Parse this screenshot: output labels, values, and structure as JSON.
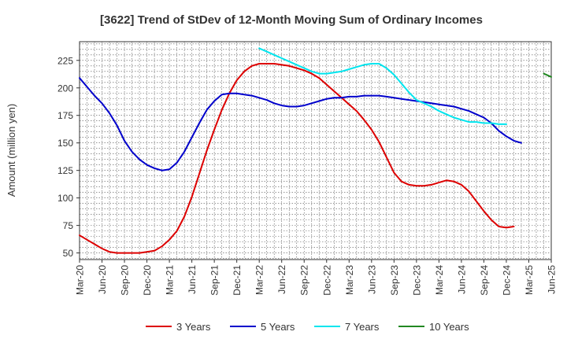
{
  "chart_data": {
    "type": "line",
    "title": "[3622]  Trend of StDev of 12-Month Moving Sum of Ordinary Incomes",
    "xlabel": "",
    "ylabel": "Amount (million yen)",
    "ylim": [
      44,
      242
    ],
    "yticks": [
      50,
      75,
      100,
      125,
      150,
      175,
      200,
      225
    ],
    "xlim": [
      0,
      63
    ],
    "x_tick_labels": [
      "Mar-20",
      "Jun-20",
      "Sep-20",
      "Dec-20",
      "Mar-21",
      "Jun-21",
      "Sep-21",
      "Dec-21",
      "Mar-22",
      "Jun-22",
      "Sep-22",
      "Dec-22",
      "Mar-23",
      "Jun-23",
      "Sep-23",
      "Dec-23",
      "Mar-24",
      "Jun-24",
      "Sep-24",
      "Dec-24",
      "Mar-25",
      "Jun-25"
    ],
    "x_tick_step_months": 3,
    "grid": true,
    "legend_position": "bottom",
    "series": [
      {
        "name": "3 Years",
        "color": "#dd0000",
        "start_index": 0,
        "values": [
          66,
          62,
          58,
          54,
          51,
          50,
          50,
          50,
          50,
          51,
          52,
          56,
          62,
          70,
          83,
          101,
          122,
          143,
          162,
          180,
          195,
          207,
          215,
          220,
          222,
          222,
          222,
          221,
          220,
          218,
          216,
          213,
          209,
          203,
          197,
          191,
          185,
          179,
          171,
          162,
          151,
          137,
          123,
          115,
          112,
          111,
          111,
          112,
          114,
          116,
          115,
          112,
          106,
          97,
          88,
          80,
          74,
          73,
          74
        ]
      },
      {
        "name": "5 Years",
        "color": "#0000cc",
        "start_index": 0,
        "values": [
          209,
          201,
          193,
          186,
          177,
          166,
          152,
          142,
          135,
          130,
          127,
          125,
          126,
          132,
          142,
          155,
          168,
          180,
          188,
          194,
          195,
          195,
          194,
          193,
          191,
          189,
          186,
          184,
          183,
          183,
          184,
          186,
          188,
          190,
          191,
          191,
          192,
          192,
          193,
          193,
          193,
          192,
          191,
          190,
          189,
          188,
          187,
          186,
          185,
          184,
          183,
          181,
          179,
          176,
          173,
          168,
          161,
          156,
          152,
          150
        ]
      },
      {
        "name": "7 Years",
        "color": "#00e5ee",
        "start_index": 24,
        "values": [
          236,
          233,
          230,
          227,
          224,
          221,
          218,
          215,
          213,
          213,
          214,
          215,
          217,
          219,
          221,
          222,
          222,
          218,
          212,
          204,
          196,
          189,
          186,
          183,
          179,
          176,
          173,
          171,
          169,
          169,
          168,
          168,
          167,
          167
        ]
      },
      {
        "name": "10 Years",
        "color": "#228822",
        "start_index": 62,
        "values": [
          213,
          210
        ]
      }
    ]
  }
}
